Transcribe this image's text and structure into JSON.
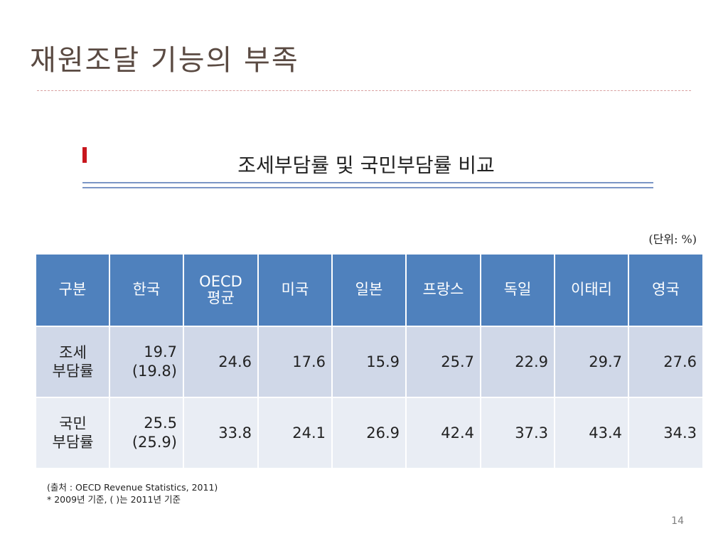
{
  "slide": {
    "title": "재원조달 기능의 부족",
    "subtitle": "조세부담률 및 국민부담률 비교",
    "unit_note": "(단위: %)",
    "page_number": "14"
  },
  "table": {
    "headers": [
      "구분",
      "한국",
      "OECD",
      "평균",
      "미국",
      "일본",
      "프랑스",
      "독일",
      "이태리",
      "영국"
    ],
    "rows": [
      {
        "label_line1": "조세",
        "label_line2": "부담률",
        "korea_main": "19.7",
        "korea_sub": "(19.8)",
        "values": [
          "24.6",
          "17.6",
          "15.9",
          "25.7",
          "22.9",
          "29.7",
          "27.6"
        ]
      },
      {
        "label_line1": "국민",
        "label_line2": "부담률",
        "korea_main": "25.5",
        "korea_sub": "(25.9)",
        "values": [
          "33.8",
          "24.1",
          "26.9",
          "42.4",
          "37.3",
          "43.4",
          "34.3"
        ]
      }
    ]
  },
  "footer": {
    "source_line": "(출처 : OECD Revenue Statistics, 2011)",
    "note_line": "* 2009년 기준,  (    )는 2011년 기준"
  },
  "colors": {
    "header_bg": "#4f81bd",
    "row_odd_bg": "#d0d8e8",
    "row_even_bg": "#e9edf4",
    "bullet": "#c8161d"
  }
}
